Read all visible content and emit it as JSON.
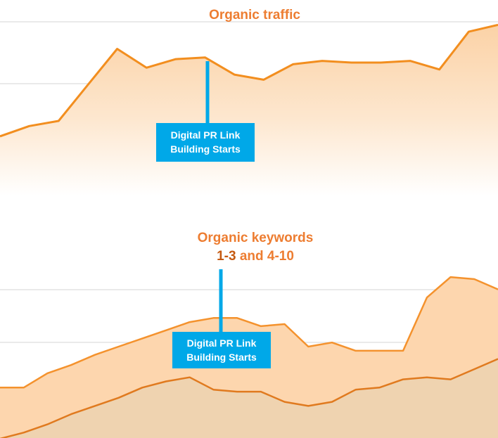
{
  "chart_data": [
    {
      "type": "area",
      "title": "Organic traffic",
      "ylim": [
        0,
        100
      ],
      "grid": true,
      "series": [
        {
          "values": [
            32,
            38,
            41,
            62,
            83,
            72,
            77,
            78,
            68,
            65,
            74,
            76,
            75,
            75,
            76,
            71,
            93,
            97
          ]
        }
      ],
      "colors": {
        "line": "#f28e1f",
        "fill_top": "#fbd2a6",
        "fill_bottom": "#ffffff",
        "grid": "#e3e3e3"
      },
      "annotation": {
        "text": [
          "Digital PR Link",
          "Building Starts"
        ],
        "at_index": 7,
        "color": "#00a8e8"
      }
    },
    {
      "type": "area",
      "title": "Organic keywords",
      "subtitle_parts": [
        "1-3",
        " and ",
        "4-10"
      ],
      "ylim": [
        0,
        100
      ],
      "grid": true,
      "series": [
        {
          "values": [
            25,
            25,
            32,
            36,
            41,
            45,
            49,
            53,
            57,
            59,
            59,
            55,
            56,
            45,
            47,
            43,
            43,
            43,
            69,
            79,
            78,
            73
          ]
        },
        {
          "values": [
            0,
            3,
            7,
            12,
            16,
            20,
            25,
            28,
            30,
            24,
            23,
            23,
            18,
            16,
            18,
            24,
            25,
            29,
            30,
            29,
            34,
            39
          ]
        }
      ],
      "colors": {
        "line_1": "#f4922d",
        "fill_1": "#fdd6ae",
        "line_2": "#e07a1f",
        "fill_2": "#efd3b0",
        "grid": "#e3e3e3"
      },
      "annotation": {
        "text": [
          "Digital PR Link",
          "Building Starts"
        ],
        "at_index": 9,
        "color": "#00a8e8"
      }
    }
  ]
}
